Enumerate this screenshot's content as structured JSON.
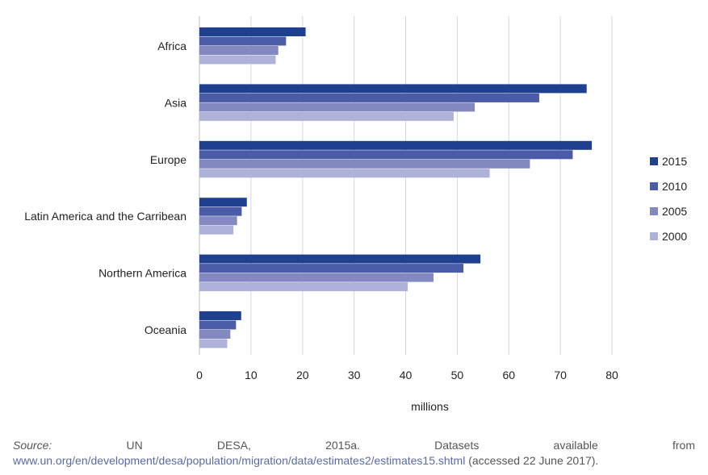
{
  "chart_data": {
    "type": "bar",
    "orientation": "horizontal",
    "categories": [
      "Africa",
      "Asia",
      "Europe",
      "Latin America and the Carribean",
      "Northern America",
      "Oceania"
    ],
    "series": [
      {
        "name": "2015",
        "color": "#1f3f8f",
        "values": [
          20.6,
          75.1,
          76.1,
          9.2,
          54.5,
          8.1
        ]
      },
      {
        "name": "2010",
        "color": "#4a5ca8",
        "values": [
          16.8,
          65.9,
          72.4,
          8.2,
          51.2,
          7.1
        ]
      },
      {
        "name": "2005",
        "color": "#8389c0",
        "values": [
          15.3,
          53.4,
          64.1,
          7.3,
          45.4,
          6.0
        ]
      },
      {
        "name": "2000",
        "color": "#aeb2d8",
        "values": [
          14.8,
          49.3,
          56.3,
          6.6,
          40.4,
          5.4
        ]
      }
    ],
    "xlabel": "millions",
    "xlim": [
      0,
      80
    ],
    "xticks": [
      0,
      10,
      20,
      30,
      40,
      50,
      60,
      70,
      80
    ],
    "grid": "vertical",
    "legend_position": "right"
  },
  "source": {
    "prefix": "Source:",
    "text": "UN DESA, 2015a. Datasets available from",
    "link": "www.un.org/en/development/desa/population/migration/data/estimates2/estimates15.shtml",
    "suffix": "(accessed 22 June 2017)."
  }
}
